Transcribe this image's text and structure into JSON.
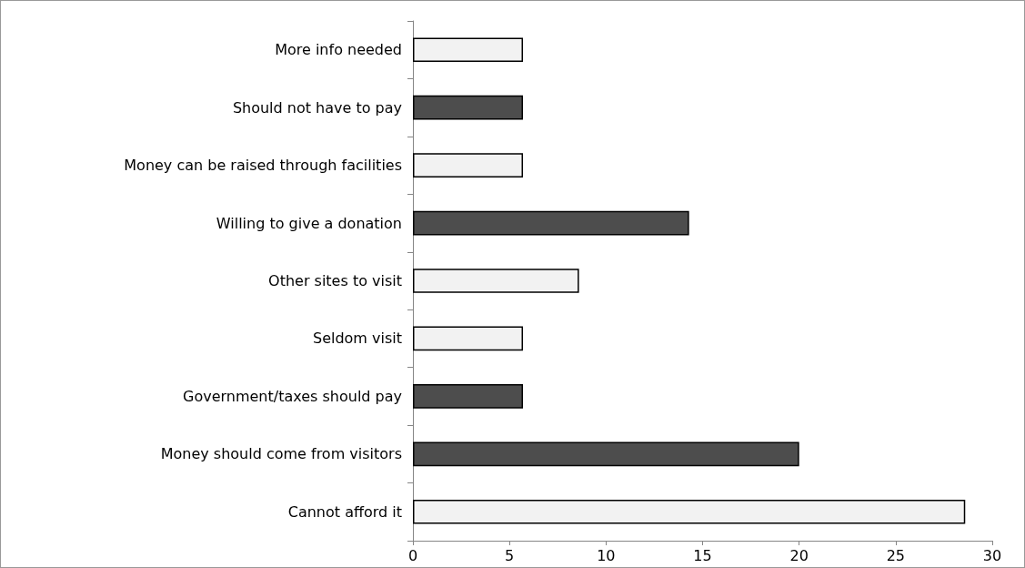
{
  "chart_data": {
    "type": "bar",
    "orientation": "horizontal",
    "categories": [
      "More info needed",
      "Should not have to pay",
      "Money can be raised through facilities",
      "Willing to give a donation",
      "Other sites to visit",
      "Seldom visit",
      "Government/taxes should pay",
      "Money should come from visitors",
      "Cannot afford it"
    ],
    "values": [
      5.7,
      5.7,
      5.7,
      14.3,
      8.6,
      5.7,
      5.7,
      20,
      28.6
    ],
    "colors": [
      "#f2f2f2",
      "#4d4d4d",
      "#f2f2f2",
      "#4d4d4d",
      "#f2f2f2",
      "#f2f2f2",
      "#4d4d4d",
      "#4d4d4d",
      "#f2f2f2"
    ],
    "xlim": [
      0,
      30
    ],
    "xticks": [
      0,
      5,
      10,
      15,
      20,
      25,
      30
    ],
    "grid": false
  }
}
